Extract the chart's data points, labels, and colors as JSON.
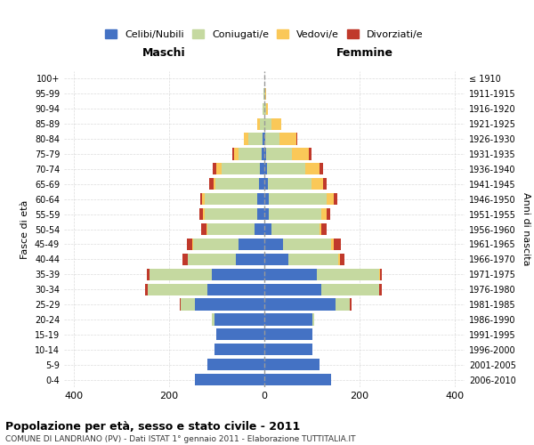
{
  "age_groups": [
    "0-4",
    "5-9",
    "10-14",
    "15-19",
    "20-24",
    "25-29",
    "30-34",
    "35-39",
    "40-44",
    "45-49",
    "50-54",
    "55-59",
    "60-64",
    "65-69",
    "70-74",
    "75-79",
    "80-84",
    "85-89",
    "90-94",
    "95-99",
    "100+"
  ],
  "birth_years": [
    "2006-2010",
    "2001-2005",
    "1996-2000",
    "1991-1995",
    "1986-1990",
    "1981-1985",
    "1976-1980",
    "1971-1975",
    "1966-1970",
    "1961-1965",
    "1956-1960",
    "1951-1955",
    "1946-1950",
    "1941-1945",
    "1936-1940",
    "1931-1935",
    "1926-1930",
    "1921-1925",
    "1916-1920",
    "1911-1915",
    "≤ 1910"
  ],
  "maschi": {
    "celibi": [
      145,
      120,
      105,
      100,
      105,
      145,
      120,
      110,
      60,
      55,
      20,
      15,
      15,
      12,
      10,
      5,
      3,
      0,
      0,
      0,
      0
    ],
    "coniugati": [
      0,
      0,
      0,
      1,
      5,
      30,
      125,
      130,
      100,
      95,
      100,
      110,
      110,
      90,
      80,
      50,
      30,
      10,
      3,
      1,
      0
    ],
    "vedovi": [
      0,
      0,
      0,
      0,
      0,
      0,
      0,
      1,
      1,
      2,
      2,
      3,
      5,
      5,
      10,
      8,
      10,
      5,
      1,
      0,
      0
    ],
    "divorziati": [
      0,
      0,
      0,
      0,
      0,
      2,
      5,
      5,
      10,
      10,
      10,
      8,
      5,
      8,
      8,
      5,
      0,
      0,
      0,
      0,
      0
    ]
  },
  "femmine": {
    "nubili": [
      140,
      115,
      100,
      100,
      100,
      150,
      120,
      110,
      50,
      40,
      15,
      10,
      10,
      8,
      5,
      3,
      2,
      0,
      0,
      0,
      0
    ],
    "coniugate": [
      0,
      0,
      0,
      1,
      5,
      30,
      120,
      130,
      105,
      100,
      100,
      110,
      120,
      90,
      80,
      55,
      30,
      15,
      3,
      1,
      0
    ],
    "vedove": [
      0,
      0,
      0,
      0,
      0,
      0,
      1,
      2,
      3,
      5,
      5,
      10,
      15,
      25,
      30,
      35,
      35,
      20,
      5,
      2,
      0
    ],
    "divorziate": [
      0,
      0,
      0,
      0,
      0,
      2,
      5,
      5,
      10,
      15,
      10,
      8,
      8,
      8,
      8,
      5,
      2,
      0,
      0,
      0,
      0
    ]
  },
  "colors": {
    "celibi": "#4472C4",
    "coniugati": "#C5D9A0",
    "vedovi": "#FAC858",
    "divorziati": "#C0392B"
  },
  "xlim": 420,
  "title": "Popolazione per età, sesso e stato civile - 2011",
  "subtitle": "COMUNE DI LANDRIANO (PV) - Dati ISTAT 1° gennaio 2011 - Elaborazione TUTTITALIA.IT",
  "xlabel_left": "Maschi",
  "xlabel_right": "Femmine",
  "ylabel_left": "Fasce di età",
  "ylabel_right": "Anni di nascita",
  "grid_color": "#cccccc"
}
